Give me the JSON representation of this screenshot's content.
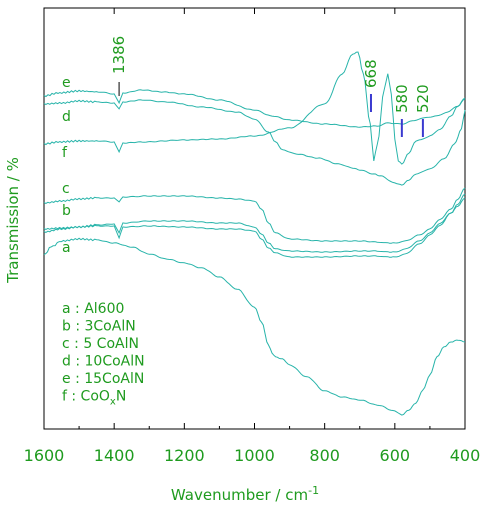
{
  "chart_data": {
    "type": "line",
    "xlabel": "Wavenumber / cm",
    "xlabel_superscript": "-1",
    "ylabel": "Transmission / %",
    "xlim": [
      1600,
      400
    ],
    "x_ticks": [
      1600,
      1400,
      1200,
      1000,
      800,
      600,
      400
    ],
    "grid": false,
    "colors": {
      "axis": "#000000",
      "text": "#1f9b1f",
      "curve": "#28b4aa",
      "marker": "#3a3ad0"
    },
    "series": [
      {
        "id": "e",
        "label": "e",
        "offset": 96,
        "points": [
          [
            1600,
            0
          ],
          [
            1560,
            -3
          ],
          [
            1500,
            -5
          ],
          [
            1440,
            -4
          ],
          [
            1400,
            -2
          ],
          [
            1386,
            7
          ],
          [
            1375,
            -3
          ],
          [
            1320,
            -6
          ],
          [
            1260,
            -4
          ],
          [
            1200,
            -2
          ],
          [
            1100,
            4
          ],
          [
            1000,
            14
          ],
          [
            950,
            20
          ],
          [
            900,
            24
          ],
          [
            800,
            28
          ],
          [
            700,
            31
          ],
          [
            650,
            30
          ],
          [
            620,
            27
          ],
          [
            580,
            28
          ],
          [
            550,
            25
          ],
          [
            520,
            22
          ],
          [
            480,
            20
          ],
          [
            450,
            16
          ],
          [
            420,
            10
          ],
          [
            400,
            3
          ]
        ]
      },
      {
        "id": "d",
        "label": "d",
        "offset": 104,
        "points": [
          [
            1600,
            0
          ],
          [
            1550,
            -1
          ],
          [
            1500,
            -3
          ],
          [
            1450,
            -2
          ],
          [
            1400,
            -1
          ],
          [
            1386,
            5
          ],
          [
            1375,
            -2
          ],
          [
            1320,
            -4
          ],
          [
            1250,
            -2
          ],
          [
            1150,
            3
          ],
          [
            1050,
            8
          ],
          [
            1000,
            15
          ],
          [
            960,
            28
          ],
          [
            940,
            38
          ],
          [
            920,
            46
          ],
          [
            880,
            50
          ],
          [
            820,
            54
          ],
          [
            760,
            60
          ],
          [
            720,
            64
          ],
          [
            700,
            66
          ],
          [
            660,
            70
          ],
          [
            640,
            72
          ],
          [
            600,
            79
          ],
          [
            580,
            81
          ],
          [
            560,
            76
          ],
          [
            540,
            70
          ],
          [
            500,
            65
          ],
          [
            460,
            55
          ],
          [
            430,
            40
          ],
          [
            410,
            25
          ],
          [
            400,
            6
          ]
        ]
      },
      {
        "id": "f",
        "label": "f",
        "offset": 144,
        "points": [
          [
            1600,
            0
          ],
          [
            1560,
            -2
          ],
          [
            1500,
            -3
          ],
          [
            1440,
            -3
          ],
          [
            1400,
            -2
          ],
          [
            1386,
            8
          ],
          [
            1375,
            -1
          ],
          [
            1320,
            -2
          ],
          [
            1200,
            -4
          ],
          [
            1100,
            -5
          ],
          [
            1000,
            -8
          ],
          [
            900,
            -16
          ],
          [
            800,
            -40
          ],
          [
            750,
            -70
          ],
          [
            720,
            -90
          ],
          [
            705,
            -92
          ],
          [
            690,
            -70
          ],
          [
            670,
            -20
          ],
          [
            660,
            17
          ],
          [
            650,
            0
          ],
          [
            630,
            -55
          ],
          [
            620,
            -70
          ],
          [
            610,
            -50
          ],
          [
            600,
            -5
          ],
          [
            590,
            17
          ],
          [
            580,
            20
          ],
          [
            560,
            9
          ],
          [
            540,
            -3
          ],
          [
            520,
            -5
          ],
          [
            500,
            -8
          ],
          [
            470,
            -15
          ],
          [
            440,
            -28
          ],
          [
            420,
            -38
          ],
          [
            400,
            -46
          ]
        ]
      },
      {
        "id": "c",
        "label": "c",
        "offset": 203,
        "points": [
          [
            1600,
            0
          ],
          [
            1550,
            -2
          ],
          [
            1500,
            -4
          ],
          [
            1450,
            -5
          ],
          [
            1400,
            -5
          ],
          [
            1386,
            -1
          ],
          [
            1375,
            -6
          ],
          [
            1300,
            -7
          ],
          [
            1200,
            -7
          ],
          [
            1100,
            -5
          ],
          [
            1050,
            -4
          ],
          [
            1000,
            -2
          ],
          [
            980,
            6
          ],
          [
            960,
            20
          ],
          [
            940,
            30
          ],
          [
            900,
            36
          ],
          [
            800,
            38
          ],
          [
            700,
            38
          ],
          [
            650,
            39
          ],
          [
            620,
            40
          ],
          [
            600,
            40
          ],
          [
            570,
            38
          ],
          [
            530,
            32
          ],
          [
            500,
            26
          ],
          [
            470,
            16
          ],
          [
            440,
            6
          ],
          [
            420,
            -4
          ],
          [
            400,
            -15
          ]
        ]
      },
      {
        "id": "b",
        "label": "b",
        "offset": 229,
        "points": [
          [
            1600,
            0
          ],
          [
            1550,
            -1
          ],
          [
            1500,
            -2
          ],
          [
            1450,
            -4
          ],
          [
            1400,
            -5
          ],
          [
            1386,
            4
          ],
          [
            1375,
            -6
          ],
          [
            1300,
            -8
          ],
          [
            1200,
            -8
          ],
          [
            1100,
            -6
          ],
          [
            1050,
            -6
          ],
          [
            1000,
            -2
          ],
          [
            980,
            5
          ],
          [
            960,
            14
          ],
          [
            940,
            20
          ],
          [
            900,
            22
          ],
          [
            800,
            23
          ],
          [
            700,
            22
          ],
          [
            650,
            22
          ],
          [
            620,
            23
          ],
          [
            600,
            23
          ],
          [
            570,
            20
          ],
          [
            530,
            12
          ],
          [
            500,
            4
          ],
          [
            470,
            -6
          ],
          [
            440,
            -16
          ],
          [
            420,
            -23
          ],
          [
            400,
            -31
          ]
        ]
      },
      {
        "id": "a_upper",
        "label": "",
        "offset": 232,
        "points": [
          [
            1600,
            0
          ],
          [
            1550,
            -3
          ],
          [
            1500,
            -5
          ],
          [
            1450,
            -6
          ],
          [
            1400,
            -6
          ],
          [
            1386,
            6
          ],
          [
            1375,
            -5
          ],
          [
            1300,
            -6
          ],
          [
            1200,
            -5
          ],
          [
            1100,
            -3
          ],
          [
            1050,
            -3
          ],
          [
            1000,
            -1
          ],
          [
            980,
            7
          ],
          [
            960,
            16
          ],
          [
            940,
            21
          ],
          [
            900,
            25
          ],
          [
            800,
            25
          ],
          [
            700,
            24
          ],
          [
            650,
            24
          ],
          [
            620,
            25
          ],
          [
            600,
            25
          ],
          [
            570,
            22
          ],
          [
            530,
            12
          ],
          [
            500,
            3
          ],
          [
            470,
            -7
          ],
          [
            440,
            -19
          ],
          [
            420,
            -28
          ],
          [
            400,
            -38
          ]
        ]
      },
      {
        "id": "a",
        "label": "a",
        "offset": 255,
        "points": [
          [
            1600,
            0
          ],
          [
            1580,
            -8
          ],
          [
            1550,
            -14
          ],
          [
            1500,
            -16
          ],
          [
            1450,
            -15
          ],
          [
            1400,
            -12
          ],
          [
            1350,
            -8
          ],
          [
            1300,
            -1
          ],
          [
            1250,
            4
          ],
          [
            1200,
            8
          ],
          [
            1150,
            13
          ],
          [
            1100,
            22
          ],
          [
            1050,
            34
          ],
          [
            1000,
            52
          ],
          [
            980,
            67
          ],
          [
            960,
            90
          ],
          [
            950,
            98
          ],
          [
            940,
            102
          ],
          [
            920,
            104
          ],
          [
            900,
            110
          ],
          [
            850,
            122
          ],
          [
            800,
            136
          ],
          [
            750,
            142
          ],
          [
            700,
            145
          ],
          [
            650,
            150
          ],
          [
            600,
            156
          ],
          [
            580,
            160
          ],
          [
            560,
            155
          ],
          [
            540,
            148
          ],
          [
            520,
            135
          ],
          [
            500,
            120
          ],
          [
            480,
            102
          ],
          [
            460,
            92
          ],
          [
            440,
            87
          ],
          [
            420,
            85
          ],
          [
            400,
            87
          ]
        ]
      }
    ],
    "peak_labels": [
      {
        "label": "1386",
        "x": 1386,
        "pos": "top",
        "connector": "line"
      },
      {
        "label": "668",
        "x": 668,
        "pos": "peak",
        "connector": "marker"
      },
      {
        "label": "580",
        "x": 580,
        "pos": "peak",
        "connector": "marker"
      },
      {
        "label": "520",
        "x": 520,
        "pos": "peak",
        "connector": "marker"
      }
    ],
    "legend": {
      "position": "bottom-left",
      "items": [
        {
          "key": "a",
          "sep": " : ",
          "name": "Al600"
        },
        {
          "key": "b",
          "sep": " : ",
          "name": "3CoAlN"
        },
        {
          "key": "c",
          "sep": " : ",
          "name": "5 CoAlN"
        },
        {
          "key": "d",
          "sep": " : ",
          "name": "10CoAlN"
        },
        {
          "key": "e",
          "sep": " : ",
          "name": "15CoAlN"
        },
        {
          "key": "f",
          "sep": " : ",
          "name": "CoO",
          "sub": "x",
          "tail": "N"
        }
      ]
    }
  }
}
